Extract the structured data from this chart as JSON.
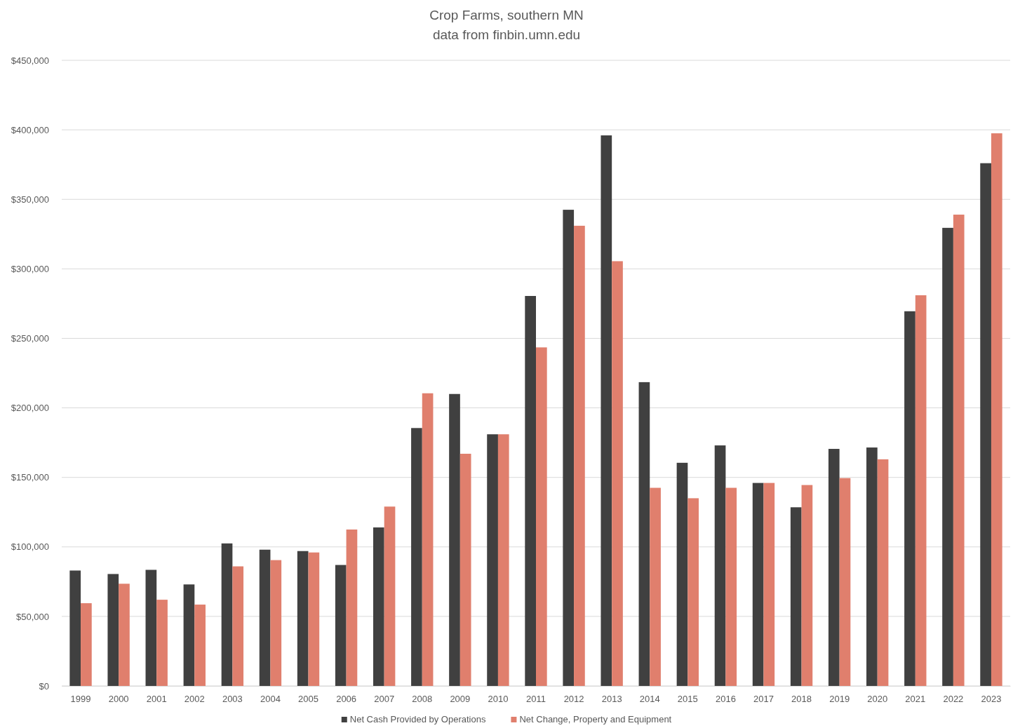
{
  "chart_data": {
    "type": "bar",
    "title": "Crop Farms, southern MN",
    "subtitle": "data from finbin.umn.edu",
    "categories": [
      "1999",
      "2000",
      "2001",
      "2002",
      "2003",
      "2004",
      "2005",
      "2006",
      "2007",
      "2008",
      "2009",
      "2010",
      "2011",
      "2012",
      "2013",
      "2014",
      "2015",
      "2016",
      "2017",
      "2018",
      "2019",
      "2020",
      "2021",
      "2022",
      "2023"
    ],
    "series": [
      {
        "name": "Net Cash Provided by Operations",
        "color": "#404040",
        "values": [
          83000,
          80500,
          83500,
          73000,
          102500,
          98000,
          97000,
          87000,
          114000,
          185500,
          210000,
          181000,
          280500,
          342500,
          396000,
          218500,
          160500,
          173000,
          146000,
          128500,
          170500,
          171500,
          269500,
          329500,
          376000
        ]
      },
      {
        "name": "Net Change, Property and Equipment",
        "color": "#e07f6d",
        "values": [
          59500,
          73500,
          62000,
          58500,
          86000,
          90500,
          96000,
          112500,
          129000,
          210500,
          167000,
          181000,
          243500,
          331000,
          305500,
          142500,
          135000,
          142500,
          146000,
          144500,
          149500,
          163000,
          281000,
          339000,
          397500
        ]
      }
    ],
    "ylim": [
      0,
      450000
    ],
    "yticks": [
      {
        "value": 0,
        "label": "$0"
      },
      {
        "value": 50000,
        "label": "$50,000"
      },
      {
        "value": 100000,
        "label": "$100,000"
      },
      {
        "value": 150000,
        "label": "$150,000"
      },
      {
        "value": 200000,
        "label": "$200,000"
      },
      {
        "value": 250000,
        "label": "$250,000"
      },
      {
        "value": 300000,
        "label": "$300,000"
      },
      {
        "value": 350000,
        "label": "$350,000"
      },
      {
        "value": 400000,
        "label": "$400,000"
      },
      {
        "value": 450000,
        "label": "$450,000"
      }
    ],
    "grid": "y",
    "legend": "bottom"
  }
}
